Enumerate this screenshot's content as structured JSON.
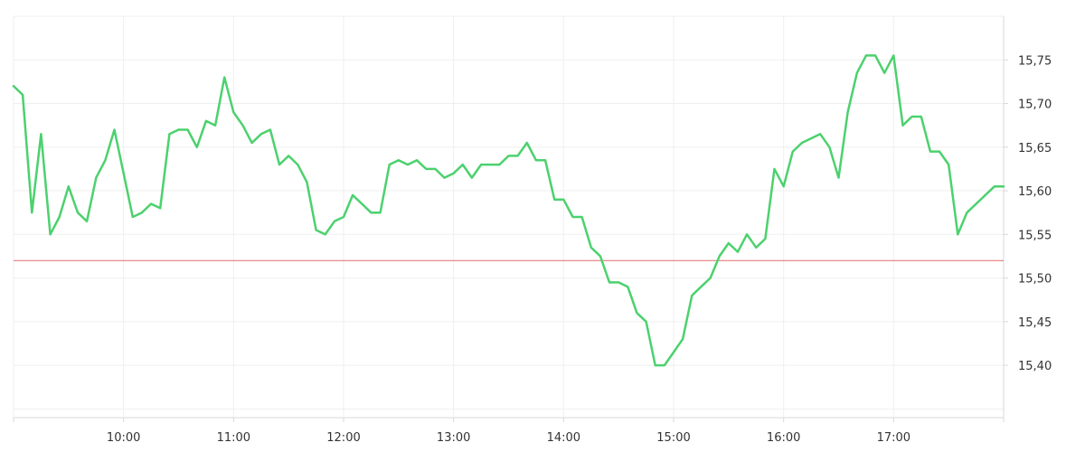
{
  "chart_data": {
    "type": "line",
    "title": "",
    "xlabel": "",
    "ylabel": "",
    "x_ticks": [
      "10:00",
      "11:00",
      "12:00",
      "13:00",
      "14:00",
      "15:00",
      "16:00",
      "17:00"
    ],
    "y_ticks": [
      "15,40",
      "15,45",
      "15,50",
      "15,55",
      "15,60",
      "15,65",
      "15,70",
      "15,75"
    ],
    "y_tick_values": [
      15.4,
      15.45,
      15.5,
      15.55,
      15.6,
      15.65,
      15.7,
      15.75
    ],
    "x_range": [
      "09:00",
      "18:00"
    ],
    "ylim": [
      15.34,
      15.8
    ],
    "grid": true,
    "y_axis_side": "right",
    "reference_line": {
      "value": 15.52,
      "color": "#e06b6b"
    },
    "series": [
      {
        "color": "#4cd16e",
        "x": [
          "09:00",
          "09:05",
          "09:10",
          "09:15",
          "09:20",
          "09:25",
          "09:30",
          "09:35",
          "09:40",
          "09:45",
          "09:50",
          "09:55",
          "10:00",
          "10:05",
          "10:10",
          "10:15",
          "10:20",
          "10:25",
          "10:30",
          "10:35",
          "10:40",
          "10:45",
          "10:50",
          "10:55",
          "11:00",
          "11:05",
          "11:10",
          "11:15",
          "11:20",
          "11:25",
          "11:30",
          "11:35",
          "11:40",
          "11:45",
          "11:50",
          "11:55",
          "12:00",
          "12:05",
          "12:10",
          "12:15",
          "12:20",
          "12:25",
          "12:30",
          "12:35",
          "12:40",
          "12:45",
          "12:50",
          "12:55",
          "13:00",
          "13:05",
          "13:10",
          "13:15",
          "13:20",
          "13:25",
          "13:30",
          "13:35",
          "13:40",
          "13:45",
          "13:50",
          "13:55",
          "14:00",
          "14:05",
          "14:10",
          "14:15",
          "14:20",
          "14:25",
          "14:30",
          "14:35",
          "14:40",
          "14:45",
          "14:50",
          "14:55",
          "15:00",
          "15:05",
          "15:10",
          "15:15",
          "15:20",
          "15:25",
          "15:30",
          "15:35",
          "15:40",
          "15:45",
          "15:50",
          "15:55",
          "16:00",
          "16:05",
          "16:10",
          "16:15",
          "16:20",
          "16:25",
          "16:30",
          "16:35",
          "16:40",
          "16:45",
          "16:50",
          "16:55",
          "17:00",
          "17:05",
          "17:10",
          "17:15",
          "17:20",
          "17:25",
          "17:30",
          "17:35",
          "17:40",
          "17:45",
          "17:50",
          "17:55",
          "18:00"
        ],
        "values": [
          15.72,
          15.71,
          15.575,
          15.665,
          15.55,
          15.57,
          15.605,
          15.575,
          15.565,
          15.615,
          15.635,
          15.67,
          15.62,
          15.57,
          15.575,
          15.585,
          15.58,
          15.665,
          15.67,
          15.67,
          15.65,
          15.68,
          15.675,
          15.73,
          15.69,
          15.675,
          15.655,
          15.665,
          15.67,
          15.63,
          15.64,
          15.63,
          15.61,
          15.555,
          15.55,
          15.565,
          15.57,
          15.595,
          15.585,
          15.575,
          15.575,
          15.63,
          15.635,
          15.63,
          15.635,
          15.625,
          15.625,
          15.615,
          15.62,
          15.63,
          15.615,
          15.63,
          15.63,
          15.63,
          15.64,
          15.64,
          15.655,
          15.635,
          15.635,
          15.59,
          15.59,
          15.57,
          15.57,
          15.535,
          15.525,
          15.495,
          15.495,
          15.49,
          15.46,
          15.45,
          15.4,
          15.4,
          15.415,
          15.43,
          15.48,
          15.49,
          15.5,
          15.525,
          15.54,
          15.53,
          15.55,
          15.535,
          15.545,
          15.625,
          15.605,
          15.645,
          15.655,
          15.66,
          15.665,
          15.65,
          15.615,
          15.69,
          15.735,
          15.755,
          15.755,
          15.735,
          15.755,
          15.675,
          15.685,
          15.685,
          15.645,
          15.645,
          15.63,
          15.55,
          15.575,
          15.585,
          15.595,
          15.605,
          15.605
        ]
      }
    ]
  }
}
